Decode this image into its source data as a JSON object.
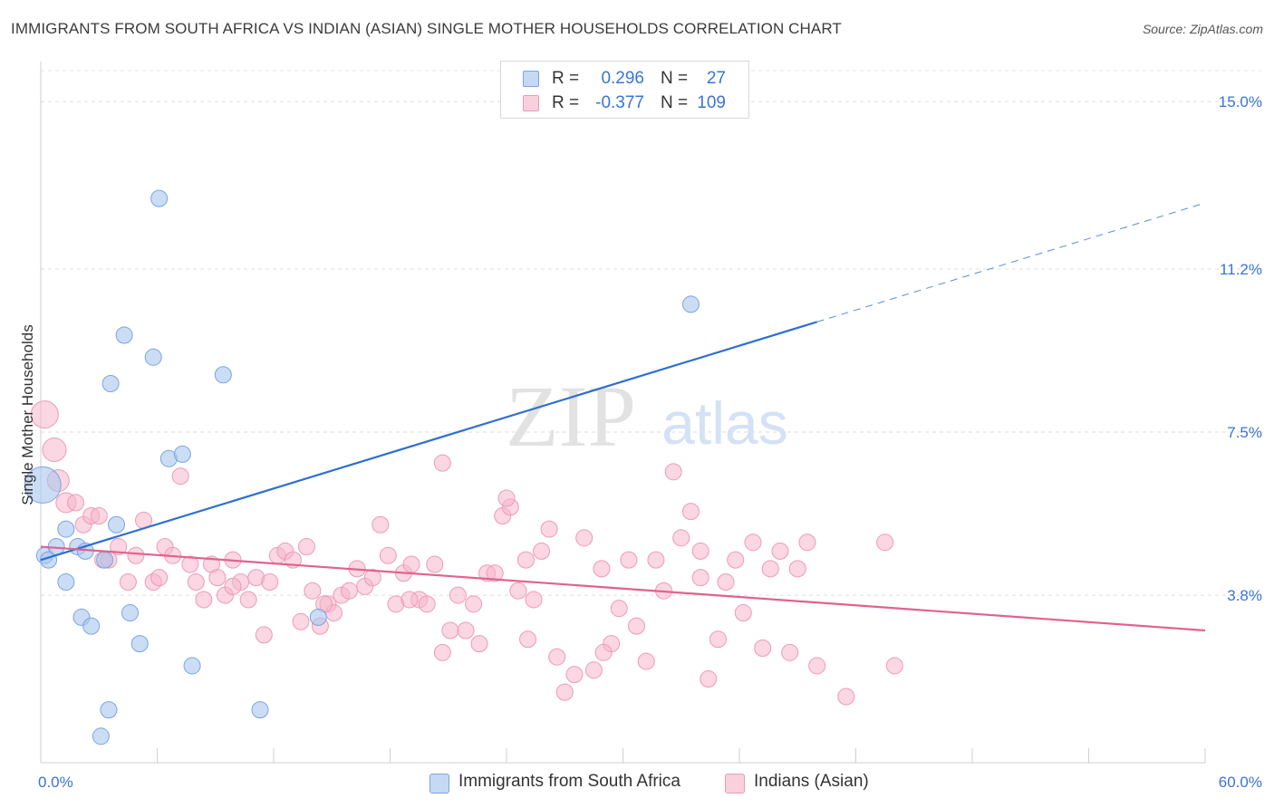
{
  "header": {
    "title": "IMMIGRANTS FROM SOUTH AFRICA VS INDIAN (ASIAN) SINGLE MOTHER HOUSEHOLDS CORRELATION CHART",
    "source": "Source: ZipAtlas.com"
  },
  "watermark": {
    "zip": "ZIP",
    "atlas": "atlas"
  },
  "legend": {
    "r_label": "R =",
    "n_label": "N =",
    "rows": [
      {
        "r": "0.296",
        "n": "27"
      },
      {
        "r": "-0.377",
        "n": "109"
      }
    ]
  },
  "colors": {
    "blue_fill": "#a9c6ef",
    "blue_stroke": "#7ba4df",
    "blue_line": "#2e6fd0",
    "pink_fill": "#f6b6ca",
    "pink_stroke": "#ee9ab6",
    "pink_line": "#e0628f",
    "tick_label": "#3a74d4"
  },
  "chart_data": {
    "type": "scatter",
    "title": "IMMIGRANTS FROM SOUTH AFRICA VS INDIAN (ASIAN) SINGLE MOTHER HOUSEHOLDS CORRELATION CHART",
    "xlabel": "",
    "ylabel": "Single Mother Households",
    "xlim": [
      0,
      60
    ],
    "ylim": [
      0,
      15.7
    ],
    "x_tick_labels": [
      "0.0%",
      "60.0%"
    ],
    "y_ticks": [
      3.8,
      7.5,
      11.2,
      15.0
    ],
    "y_tick_labels": [
      "3.8%",
      "7.5%",
      "11.2%",
      "15.0%"
    ],
    "grid": "horizontal dashed",
    "legend_position": "top-center",
    "series": [
      {
        "name": "Immigrants from South Africa",
        "color": "#a9c6ef",
        "points": [
          [
            0.1,
            6.3,
            20
          ],
          [
            0.2,
            4.7,
            9
          ],
          [
            0.4,
            4.6,
            9
          ],
          [
            0.8,
            4.9,
            9
          ],
          [
            1.3,
            5.3,
            9
          ],
          [
            1.9,
            4.9,
            9
          ],
          [
            2.3,
            4.8,
            9
          ],
          [
            1.3,
            4.1,
            9
          ],
          [
            2.1,
            3.3,
            9
          ],
          [
            2.6,
            3.1,
            9
          ],
          [
            3.3,
            4.6,
            9
          ],
          [
            3.6,
            8.6,
            9
          ],
          [
            3.9,
            5.4,
            9
          ],
          [
            4.3,
            9.7,
            9
          ],
          [
            4.6,
            3.4,
            9
          ],
          [
            5.1,
            2.7,
            9
          ],
          [
            5.8,
            9.2,
            9
          ],
          [
            6.1,
            12.8,
            9
          ],
          [
            6.6,
            6.9,
            9
          ],
          [
            7.3,
            7.0,
            9
          ],
          [
            7.8,
            2.2,
            9
          ],
          [
            9.4,
            8.8,
            9
          ],
          [
            11.3,
            1.2,
            9
          ],
          [
            14.3,
            3.3,
            9
          ],
          [
            3.5,
            1.2,
            9
          ],
          [
            3.1,
            0.6,
            9
          ],
          [
            33.5,
            10.4,
            9
          ]
        ]
      },
      {
        "name": "Indians (Asian)",
        "color": "#f6b6ca",
        "points": [
          [
            0.2,
            7.9,
            15
          ],
          [
            0.7,
            7.1,
            13
          ],
          [
            0.9,
            6.4,
            12
          ],
          [
            1.3,
            5.9,
            11
          ],
          [
            1.8,
            5.9,
            9
          ],
          [
            2.2,
            5.4,
            9
          ],
          [
            2.6,
            5.6,
            9
          ],
          [
            3.0,
            5.6,
            9
          ],
          [
            3.2,
            4.6,
            9
          ],
          [
            3.5,
            4.6,
            9
          ],
          [
            4.0,
            4.9,
            9
          ],
          [
            4.5,
            4.1,
            9
          ],
          [
            4.9,
            4.7,
            9
          ],
          [
            5.3,
            5.5,
            9
          ],
          [
            5.8,
            4.1,
            9
          ],
          [
            6.1,
            4.2,
            9
          ],
          [
            6.4,
            4.9,
            9
          ],
          [
            6.8,
            4.7,
            9
          ],
          [
            7.2,
            6.5,
            9
          ],
          [
            7.7,
            4.5,
            9
          ],
          [
            8.0,
            4.1,
            9
          ],
          [
            8.4,
            3.7,
            9
          ],
          [
            8.8,
            4.5,
            9
          ],
          [
            9.1,
            4.2,
            9
          ],
          [
            9.5,
            3.8,
            9
          ],
          [
            9.9,
            4.6,
            9
          ],
          [
            10.3,
            4.1,
            9
          ],
          [
            10.7,
            3.7,
            9
          ],
          [
            11.1,
            4.2,
            9
          ],
          [
            11.5,
            2.9,
            9
          ],
          [
            11.8,
            4.1,
            9
          ],
          [
            12.2,
            4.7,
            9
          ],
          [
            12.6,
            4.8,
            9
          ],
          [
            13.0,
            4.6,
            9
          ],
          [
            13.4,
            3.2,
            9
          ],
          [
            13.7,
            4.9,
            9
          ],
          [
            14.0,
            3.9,
            9
          ],
          [
            14.4,
            3.1,
            9
          ],
          [
            14.8,
            3.6,
            9
          ],
          [
            15.1,
            3.4,
            9
          ],
          [
            15.5,
            3.8,
            9
          ],
          [
            15.9,
            3.9,
            9
          ],
          [
            16.3,
            4.4,
            9
          ],
          [
            16.7,
            4.0,
            9
          ],
          [
            17.1,
            4.2,
            9
          ],
          [
            17.5,
            5.4,
            9
          ],
          [
            17.9,
            4.7,
            9
          ],
          [
            18.3,
            3.6,
            9
          ],
          [
            18.7,
            4.3,
            9
          ],
          [
            19.1,
            4.5,
            9
          ],
          [
            19.5,
            3.7,
            9
          ],
          [
            19.9,
            3.6,
            9
          ],
          [
            20.3,
            4.5,
            9
          ],
          [
            20.7,
            2.5,
            9
          ],
          [
            21.1,
            3.0,
            9
          ],
          [
            21.5,
            3.8,
            9
          ],
          [
            21.9,
            3.0,
            9
          ],
          [
            22.3,
            3.6,
            9
          ],
          [
            22.6,
            2.7,
            9
          ],
          [
            23.0,
            4.3,
            9
          ],
          [
            23.4,
            4.3,
            9
          ],
          [
            23.8,
            5.6,
            9
          ],
          [
            24.2,
            5.8,
            9
          ],
          [
            24.6,
            3.9,
            9
          ],
          [
            25.0,
            4.6,
            9
          ],
          [
            25.4,
            3.7,
            9
          ],
          [
            25.8,
            4.8,
            9
          ],
          [
            26.2,
            5.3,
            9
          ],
          [
            26.6,
            2.4,
            9
          ],
          [
            27.0,
            1.6,
            9
          ],
          [
            27.5,
            2.0,
            9
          ],
          [
            28.0,
            5.1,
            9
          ],
          [
            28.5,
            2.1,
            9
          ],
          [
            28.9,
            4.4,
            9
          ],
          [
            29.4,
            2.7,
            9
          ],
          [
            29.8,
            3.5,
            9
          ],
          [
            30.3,
            4.6,
            9
          ],
          [
            30.7,
            3.1,
            9
          ],
          [
            31.2,
            2.3,
            9
          ],
          [
            31.7,
            4.6,
            9
          ],
          [
            32.1,
            3.9,
            9
          ],
          [
            32.6,
            6.6,
            9
          ],
          [
            33.0,
            5.1,
            9
          ],
          [
            33.5,
            5.7,
            9
          ],
          [
            34.0,
            4.8,
            9
          ],
          [
            34.4,
            1.9,
            9
          ],
          [
            34.9,
            2.8,
            9
          ],
          [
            35.3,
            4.1,
            9
          ],
          [
            35.8,
            4.6,
            9
          ],
          [
            36.2,
            3.4,
            9
          ],
          [
            36.7,
            5.0,
            9
          ],
          [
            37.2,
            2.6,
            9
          ],
          [
            37.6,
            4.4,
            9
          ],
          [
            38.1,
            4.8,
            9
          ],
          [
            38.6,
            2.5,
            9
          ],
          [
            39.0,
            4.4,
            9
          ],
          [
            39.5,
            5.0,
            9
          ],
          [
            40.0,
            2.2,
            9
          ],
          [
            41.5,
            1.5,
            9
          ],
          [
            43.5,
            5.0,
            9
          ],
          [
            44.0,
            2.2,
            9
          ],
          [
            20.7,
            6.8,
            9
          ],
          [
            24.0,
            6.0,
            9
          ],
          [
            29.0,
            2.5,
            9
          ],
          [
            9.9,
            4.0,
            9
          ],
          [
            14.6,
            3.6,
            9
          ],
          [
            19.0,
            3.7,
            9
          ],
          [
            25.1,
            2.8,
            9
          ],
          [
            34.0,
            4.2,
            9
          ]
        ]
      }
    ],
    "trend_lines": [
      {
        "series": "Immigrants from South Africa",
        "x_start": 0,
        "y_start": 4.6,
        "x_solid_end": 40,
        "y_solid_end": 10.0,
        "x_dashed_end": 60,
        "y_dashed_end": 12.7
      },
      {
        "series": "Indians (Asian)",
        "x_start": 0,
        "y_start": 4.9,
        "x_end": 60,
        "y_end": 3.0
      }
    ]
  },
  "bottom_legend": {
    "items": [
      {
        "label": "Immigrants from South Africa"
      },
      {
        "label": "Indians (Asian)"
      }
    ]
  }
}
